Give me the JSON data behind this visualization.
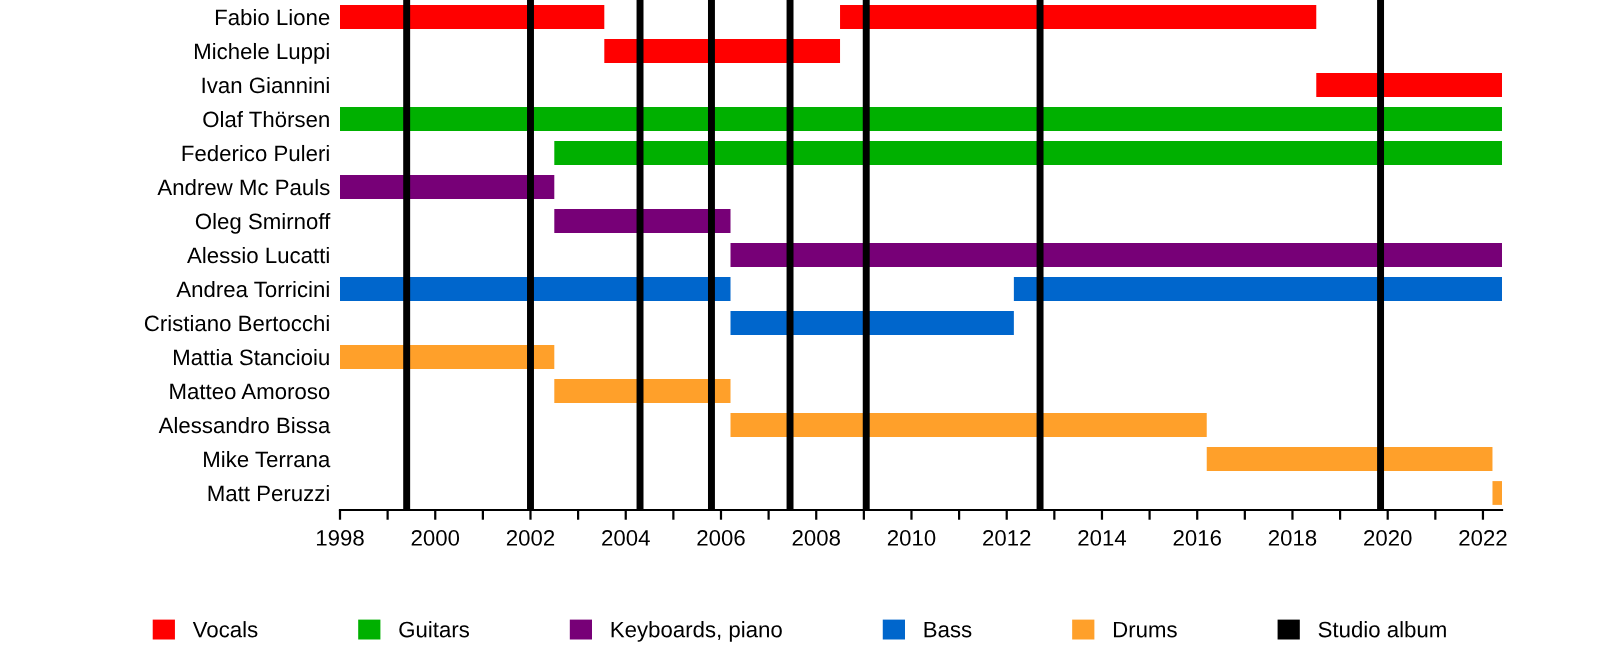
{
  "chart_data": {
    "type": "bar",
    "orientation": "horizontal",
    "categories": [
      "Fabio Lione",
      "Michele Luppi",
      "Ivan Giannini",
      "Olaf Thörsen",
      "Federico Puleri",
      "Andrew Mc Pauls",
      "Oleg Smirnoff",
      "Alessio Lucatti",
      "Andrea Torricini",
      "Cristiano Bertocchi",
      "Mattia Stancioiu",
      "Matteo Amoroso",
      "Alessandro Bissa",
      "Mike Terrana",
      "Matt Peruzzi"
    ],
    "series": [
      {
        "name": "Vocals",
        "color": "#ff0000",
        "base": [
          1998,
          2003.55,
          2018.5,
          null,
          null,
          null,
          null,
          null,
          null,
          null,
          null,
          null,
          null,
          null,
          null
        ],
        "values": [
          5.55,
          4.95,
          3.9,
          null,
          null,
          null,
          null,
          null,
          null,
          null,
          null,
          null,
          null,
          null,
          null
        ]
      },
      {
        "color": "#ff0000",
        "base": [
          2008.5,
          null,
          null,
          null,
          null,
          null,
          null,
          null,
          null,
          null,
          null,
          null,
          null,
          null,
          null
        ],
        "values": [
          10,
          null,
          null,
          null,
          null,
          null,
          null,
          null,
          null,
          null,
          null,
          null,
          null,
          null,
          null
        ]
      },
      {
        "name": "Guitars",
        "color": "#00b000",
        "base": [
          null,
          null,
          null,
          1998,
          2002.5,
          null,
          null,
          null,
          null,
          null,
          null,
          null,
          null,
          null,
          null
        ],
        "values": [
          null,
          null,
          null,
          24.4,
          19.9,
          null,
          null,
          null,
          null,
          null,
          null,
          null,
          null,
          null,
          null
        ]
      },
      {
        "name": "Keyboards, piano",
        "color": "#770077",
        "base": [
          null,
          null,
          null,
          null,
          null,
          1998,
          2002.5,
          2006.2,
          null,
          null,
          null,
          null,
          null,
          null,
          null
        ],
        "values": [
          null,
          null,
          null,
          null,
          null,
          4.5,
          3.7,
          16.2,
          null,
          null,
          null,
          null,
          null,
          null,
          null
        ]
      },
      {
        "name": "Bass",
        "color": "#0066cc",
        "base": [
          null,
          null,
          null,
          null,
          null,
          null,
          null,
          null,
          1998,
          2006.2,
          null,
          null,
          null,
          null,
          null
        ],
        "values": [
          null,
          null,
          null,
          null,
          null,
          null,
          null,
          null,
          8.2,
          5.95,
          null,
          null,
          null,
          null,
          null
        ]
      },
      {
        "color": "#0066cc",
        "base": [
          null,
          null,
          null,
          null,
          null,
          null,
          null,
          null,
          2012.15,
          null,
          null,
          null,
          null,
          null,
          null
        ],
        "values": [
          null,
          null,
          null,
          null,
          null,
          null,
          null,
          null,
          10.25,
          null,
          null,
          null,
          null,
          null,
          null
        ]
      },
      {
        "name": "Drums",
        "color": "#ffa02a",
        "base": [
          null,
          null,
          null,
          null,
          null,
          null,
          null,
          null,
          null,
          null,
          1998,
          2002.5,
          2006.2,
          2016.2,
          2022.2
        ],
        "values": [
          null,
          null,
          null,
          null,
          null,
          null,
          null,
          null,
          null,
          null,
          4.5,
          3.7,
          10,
          6,
          0.2
        ]
      }
    ],
    "ref_lines": [
      {
        "axis": "x",
        "value": 1999.4,
        "label": "Studio album",
        "color": "#000000"
      },
      {
        "axis": "x",
        "value": 2002.0,
        "color": "#000000"
      },
      {
        "axis": "x",
        "value": 2004.3,
        "color": "#000000"
      },
      {
        "axis": "x",
        "value": 2005.8,
        "color": "#000000"
      },
      {
        "axis": "x",
        "value": 2007.45,
        "color": "#000000"
      },
      {
        "axis": "x",
        "value": 2009.05,
        "color": "#000000"
      },
      {
        "axis": "x",
        "value": 2012.7,
        "color": "#000000"
      },
      {
        "axis": "x",
        "value": 2019.85,
        "color": "#000000"
      }
    ],
    "xlim": [
      1998,
      2022.4
    ],
    "xticks": [
      1998,
      {
        "value": 1999,
        "label": null
      },
      2000,
      {
        "value": 2001,
        "label": null
      },
      2002,
      {
        "value": 2003,
        "label": null
      },
      2004,
      {
        "value": 2005,
        "label": null
      },
      2006,
      {
        "value": 2007,
        "label": null
      },
      2008,
      {
        "value": 2009,
        "label": null
      },
      2010,
      {
        "value": 2011,
        "label": null
      },
      2012,
      {
        "value": 2013,
        "label": null
      },
      2014,
      {
        "value": 2015,
        "label": null
      },
      2016,
      {
        "value": 2017,
        "label": null
      },
      2018,
      {
        "value": 2019,
        "label": null
      },
      2020,
      {
        "value": 2021,
        "label": null
      },
      2022
    ],
    "legend": "bottom",
    "grid": false
  }
}
